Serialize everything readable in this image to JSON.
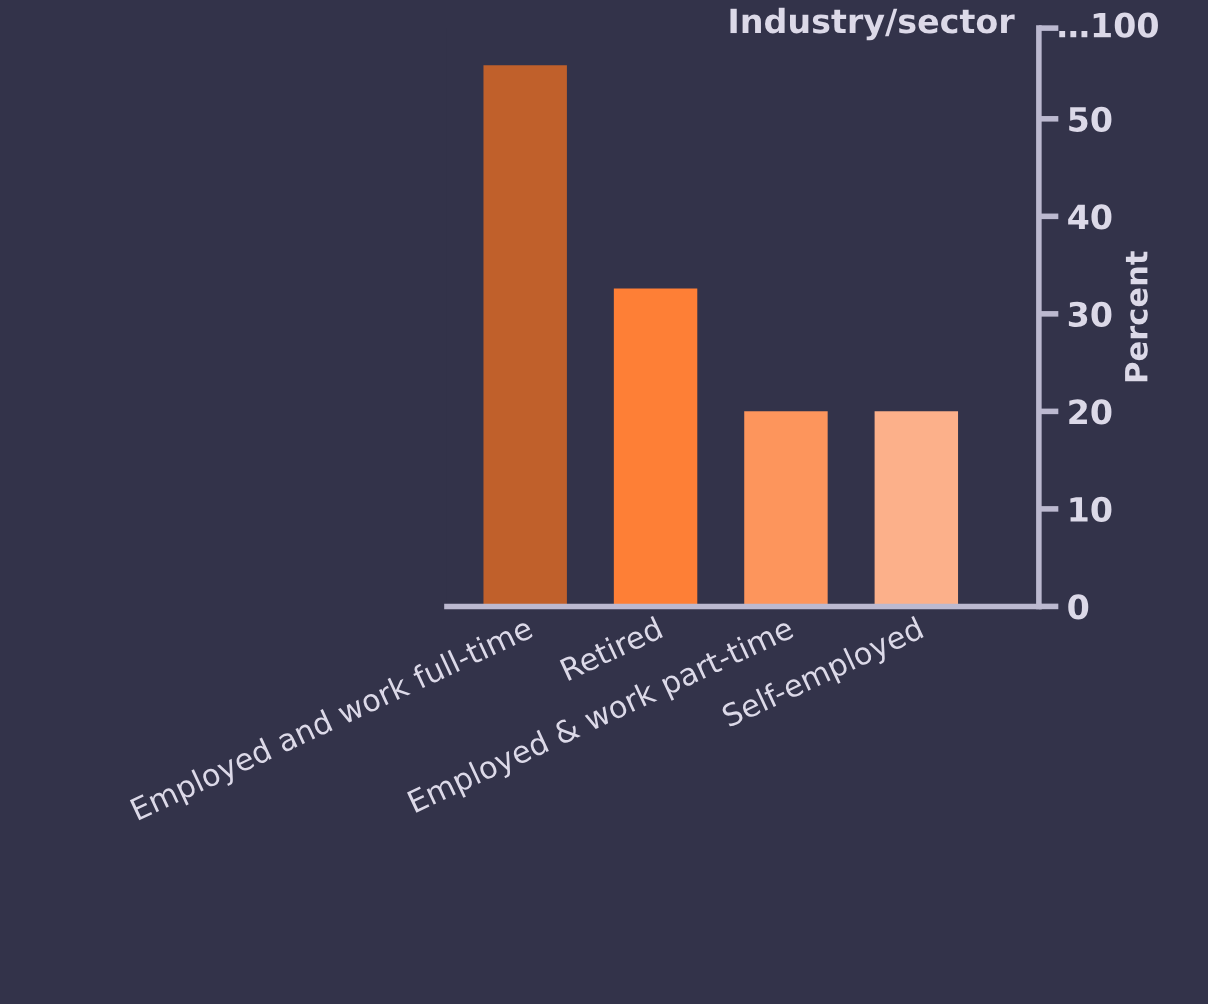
{
  "chart_data": {
    "type": "bar",
    "title": "Industry/sector",
    "ylabel": "Percent",
    "categories": [
      "Employed and work full-time",
      "Retired",
      "Employed & work part-time",
      "Self-employed"
    ],
    "values": [
      55.5,
      32.6,
      20,
      20
    ],
    "colors": [
      "#c0602b",
      "#fe7f36",
      "#fd955c",
      "#fcb08a"
    ],
    "ylim": [
      0,
      59.3
    ],
    "yticks": [
      0,
      10,
      20,
      30,
      40,
      50,
      {
        "value": 59.3,
        "label": null
      }
    ],
    "annotations": [
      "…100"
    ],
    "grid": false
  }
}
